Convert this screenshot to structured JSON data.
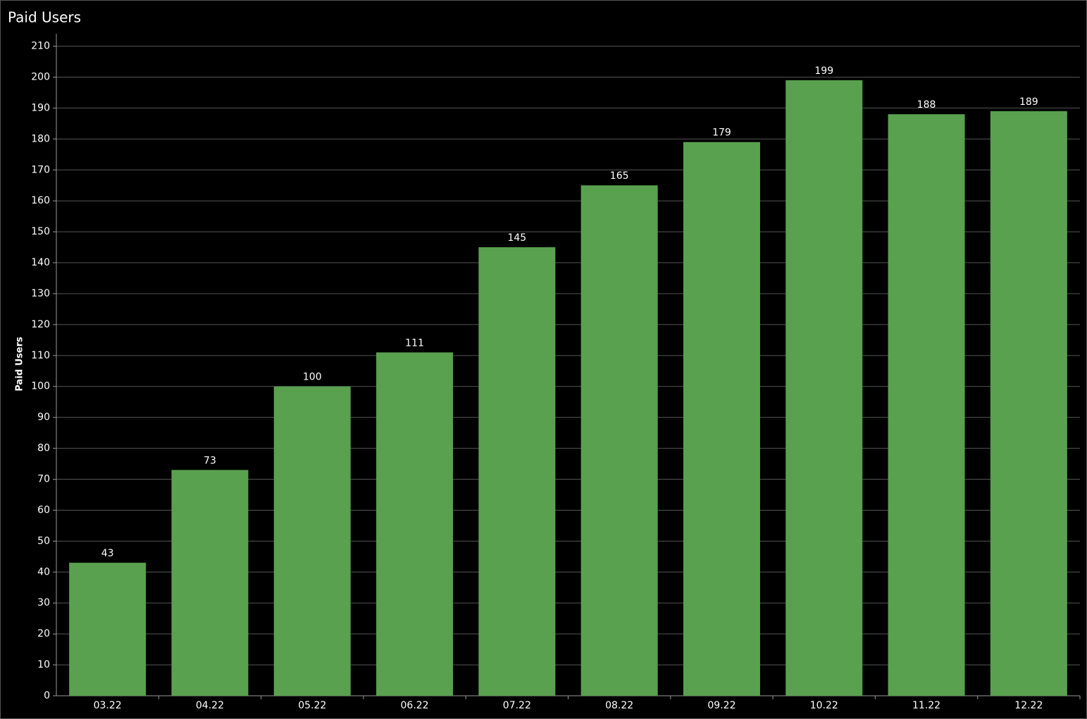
{
  "chart_data": {
    "type": "bar",
    "title": "Paid Users",
    "y_label": "Paid Users",
    "categories": [
      "03.22",
      "04.22",
      "05.22",
      "06.22",
      "07.22",
      "08.22",
      "09.22",
      "10.22",
      "11.22",
      "12.22"
    ],
    "values": [
      43,
      73,
      100,
      111,
      145,
      165,
      179,
      199,
      188,
      189
    ],
    "color": "#59a14f",
    "ylim": [
      0,
      214
    ],
    "yticks": [
      0,
      10,
      20,
      30,
      40,
      50,
      60,
      70,
      80,
      90,
      100,
      110,
      120,
      130,
      140,
      150,
      160,
      170,
      180,
      190,
      200,
      210
    ],
    "grid": true
  }
}
